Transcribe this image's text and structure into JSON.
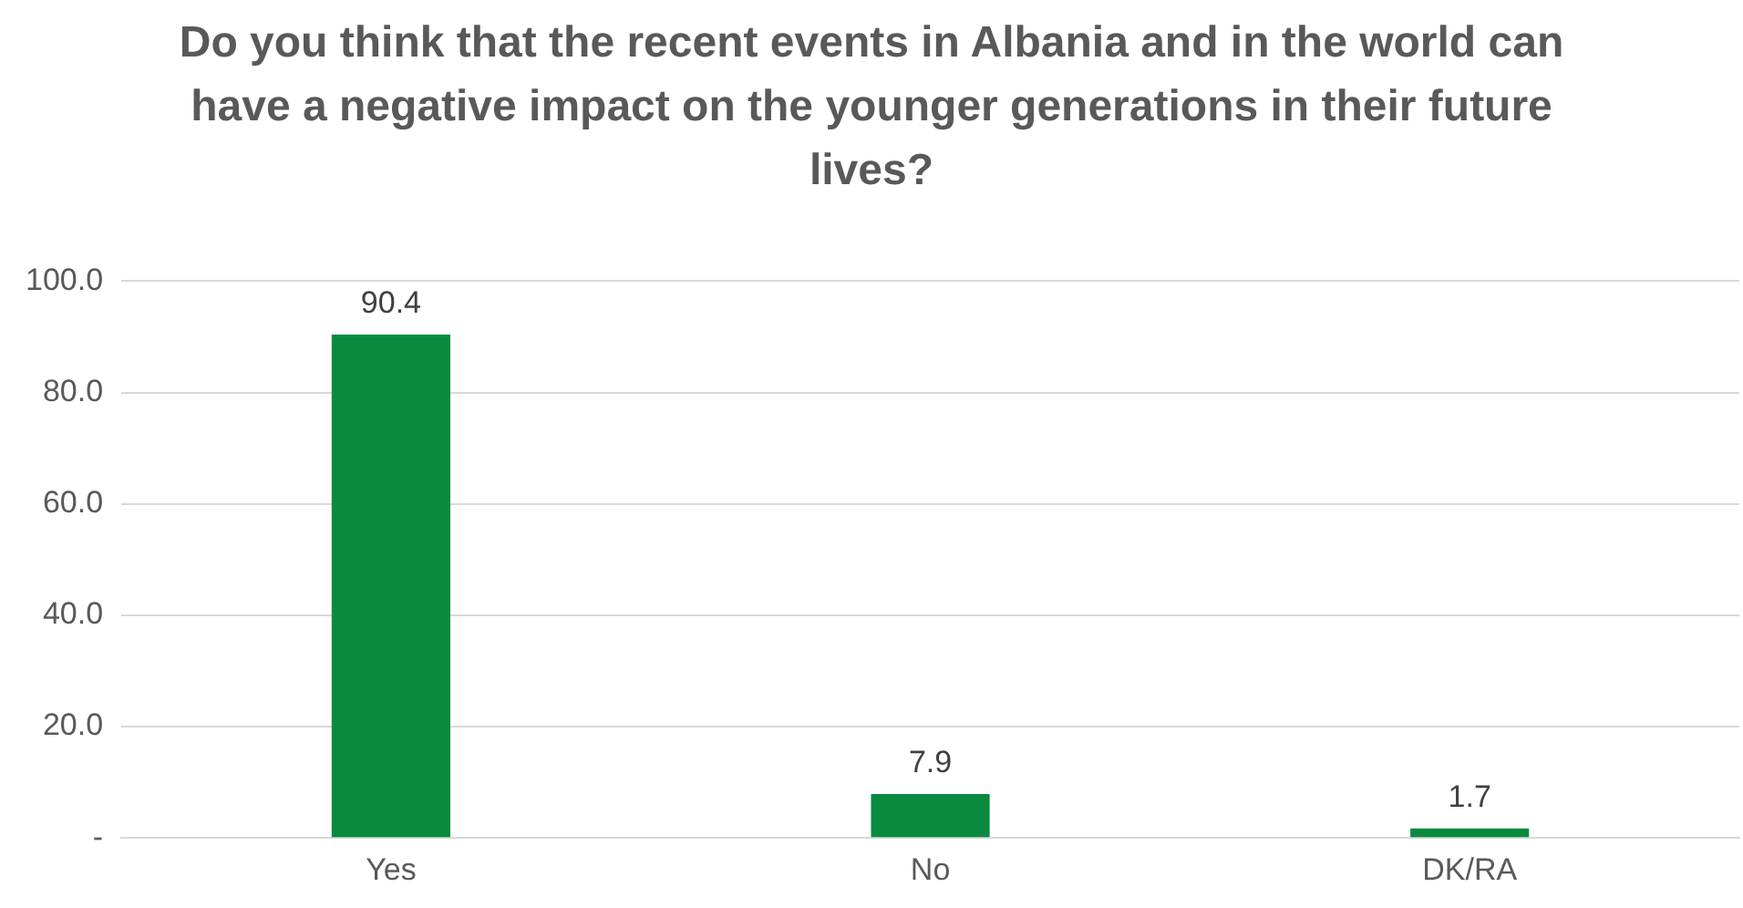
{
  "chart_data": {
    "type": "bar",
    "title": "Do you think that the recent events in Albania and in the world can have a negative impact on the younger generations in their future lives?",
    "categories": [
      "Yes",
      "No",
      "DK/RA"
    ],
    "values": [
      90.4,
      7.9,
      1.7
    ],
    "color": "#0a8a3f",
    "ylim": [
      0,
      100
    ],
    "yticks": [
      {
        "value": 0,
        "label": "-"
      },
      {
        "value": 20,
        "label": "20.0"
      },
      {
        "value": 40,
        "label": "40.0"
      },
      {
        "value": 60,
        "label": "60.0"
      },
      {
        "value": 80,
        "label": "80.0"
      },
      {
        "value": 100,
        "label": "100.0"
      }
    ],
    "grid": "y",
    "data_labels": true
  }
}
